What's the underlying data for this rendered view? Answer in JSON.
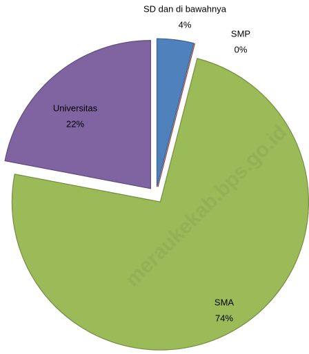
{
  "chart_data": {
    "type": "pie",
    "categories": [
      "SD dan di bawahnya",
      "SMP",
      "SMA",
      "Universitas"
    ],
    "values": [
      4,
      0,
      74,
      22
    ],
    "value_labels": [
      "4%",
      "0%",
      "74%",
      "22%"
    ],
    "colors": [
      "#4f81bd",
      "#c0504d",
      "#9bbb59",
      "#8064a2"
    ],
    "exploded": true,
    "watermark": "meraukekab.bps.go.id"
  }
}
